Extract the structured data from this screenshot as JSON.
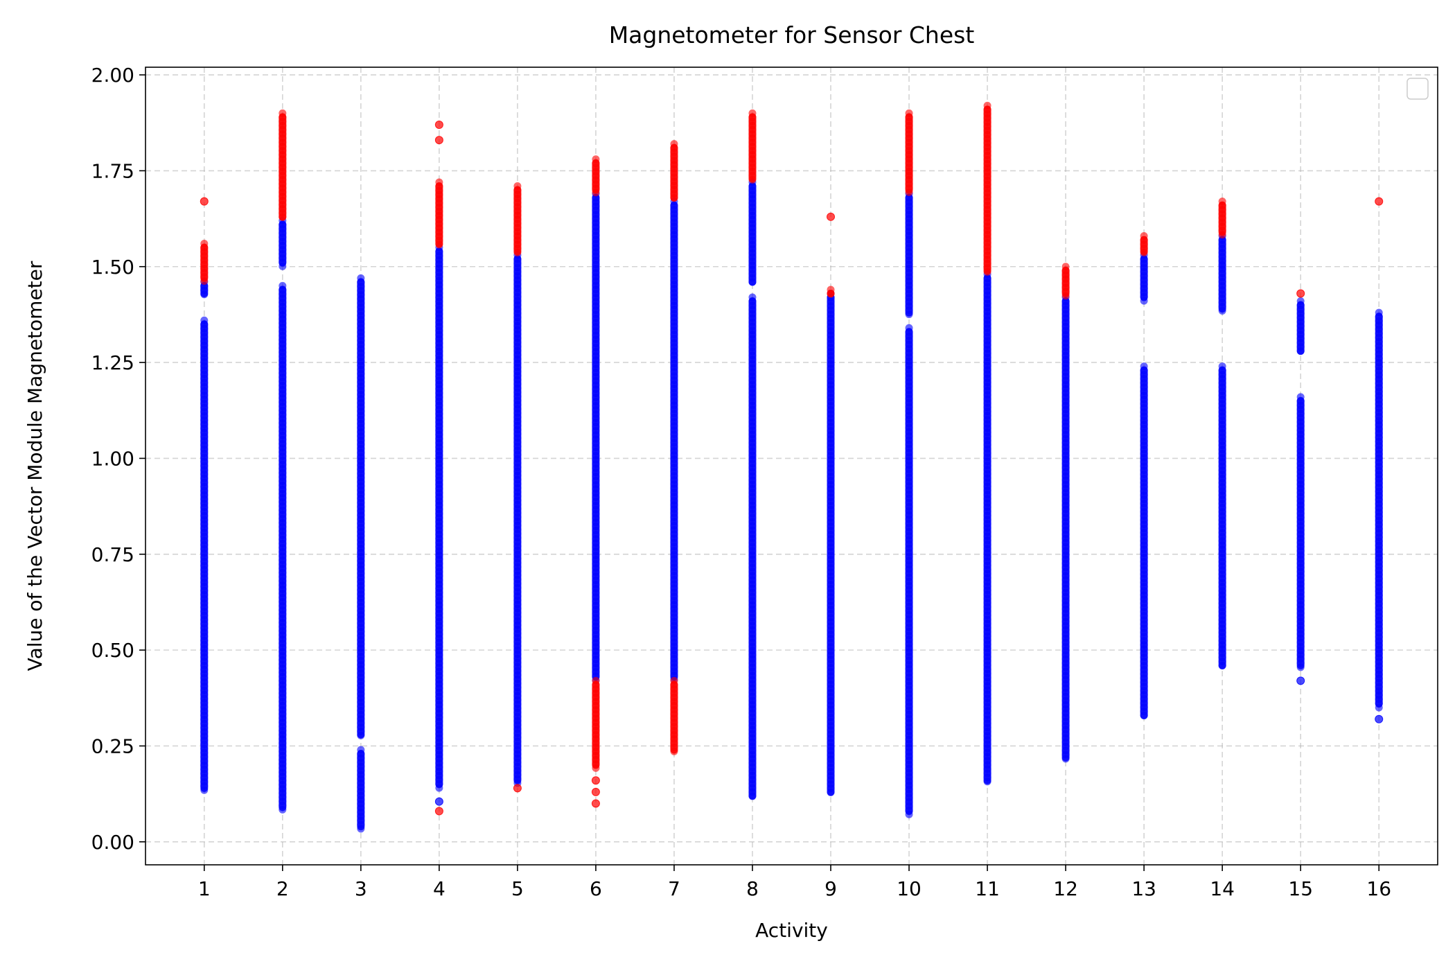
{
  "chart_data": {
    "type": "scatter",
    "title": "Magnetometer for Sensor Chest",
    "xlabel": "Activity",
    "ylabel": "Value of the Vector Module Magnetometer",
    "x_ticks": [
      1,
      2,
      3,
      4,
      5,
      6,
      7,
      8,
      9,
      10,
      11,
      12,
      13,
      14,
      15,
      16
    ],
    "y_ticks": [
      "0.00",
      "0.25",
      "0.50",
      "0.75",
      "1.00",
      "1.25",
      "1.50",
      "1.75",
      "2.00"
    ],
    "xlim": [
      0.25,
      16.75
    ],
    "ylim": [
      -0.06,
      2.02
    ],
    "grid": true,
    "legend": {
      "placement": "top-right",
      "entries": []
    },
    "colors": {
      "normal": "#0000ff",
      "outlier": "#ff0000"
    },
    "series": [
      {
        "x": 1,
        "segments": [
          [
            0.13,
            1.36
          ],
          [
            1.42,
            1.46
          ]
        ],
        "outlier_segments": [
          [
            1.46,
            1.56
          ]
        ],
        "outlier_points": [
          1.67
        ]
      },
      {
        "x": 2,
        "segments": [
          [
            0.08,
            1.45
          ],
          [
            1.5,
            1.62
          ]
        ],
        "outlier_segments": [
          [
            1.62,
            1.9
          ]
        ],
        "outlier_points": []
      },
      {
        "x": 3,
        "segments": [
          [
            0.03,
            0.24
          ],
          [
            0.27,
            1.47
          ]
        ],
        "outlier_segments": [],
        "outlier_points": []
      },
      {
        "x": 4,
        "segments": [
          [
            0.14,
            1.55
          ]
        ],
        "normal_points": [
          0.105
        ],
        "outlier_segments": [
          [
            1.55,
            1.72
          ]
        ],
        "outlier_points": [
          0.08,
          1.83,
          1.87
        ]
      },
      {
        "x": 5,
        "segments": [
          [
            0.15,
            1.53
          ]
        ],
        "outlier_segments": [
          [
            1.53,
            1.71
          ]
        ],
        "outlier_points": [
          0.14
        ]
      },
      {
        "x": 6,
        "segments": [
          [
            0.42,
            1.69
          ]
        ],
        "outlier_segments": [
          [
            0.19,
            0.42
          ],
          [
            1.69,
            1.78
          ]
        ],
        "outlier_points": [
          0.1,
          0.13,
          0.16
        ]
      },
      {
        "x": 7,
        "segments": [
          [
            0.42,
            1.67
          ]
        ],
        "outlier_segments": [
          [
            0.23,
            0.42
          ],
          [
            1.67,
            1.82
          ]
        ],
        "outlier_points": []
      },
      {
        "x": 8,
        "segments": [
          [
            0.11,
            1.42
          ],
          [
            1.45,
            1.72
          ]
        ],
        "outlier_segments": [
          [
            1.72,
            1.9
          ]
        ],
        "outlier_points": []
      },
      {
        "x": 9,
        "segments": [
          [
            0.12,
            1.43
          ]
        ],
        "outlier_segments": [
          [
            1.42,
            1.44
          ]
        ],
        "outlier_points": [
          1.63
        ]
      },
      {
        "x": 10,
        "segments": [
          [
            0.07,
            1.34
          ],
          [
            1.37,
            1.69
          ]
        ],
        "outlier_segments": [
          [
            1.69,
            1.9
          ]
        ],
        "outlier_points": []
      },
      {
        "x": 11,
        "segments": [
          [
            0.15,
            1.48
          ]
        ],
        "outlier_segments": [
          [
            1.48,
            1.92
          ]
        ],
        "outlier_points": []
      },
      {
        "x": 12,
        "segments": [
          [
            0.21,
            1.42
          ]
        ],
        "outlier_segments": [
          [
            1.42,
            1.5
          ]
        ],
        "outlier_points": []
      },
      {
        "x": 13,
        "segments": [
          [
            0.32,
            1.24
          ],
          [
            1.41,
            1.53
          ]
        ],
        "outlier_segments": [
          [
            1.53,
            1.58
          ]
        ],
        "outlier_points": []
      },
      {
        "x": 14,
        "segments": [
          [
            0.45,
            1.24
          ],
          [
            1.38,
            1.58
          ]
        ],
        "outlier_segments": [
          [
            1.58,
            1.67
          ]
        ],
        "outlier_points": []
      },
      {
        "x": 15,
        "segments": [
          [
            0.45,
            1.16
          ],
          [
            1.27,
            1.41
          ]
        ],
        "normal_points": [
          0.42
        ],
        "outlier_segments": [],
        "outlier_points": [
          1.43
        ]
      },
      {
        "x": 16,
        "segments": [
          [
            0.35,
            1.38
          ]
        ],
        "normal_points": [
          0.32
        ],
        "outlier_segments": [],
        "outlier_points": [
          1.67
        ]
      }
    ]
  }
}
